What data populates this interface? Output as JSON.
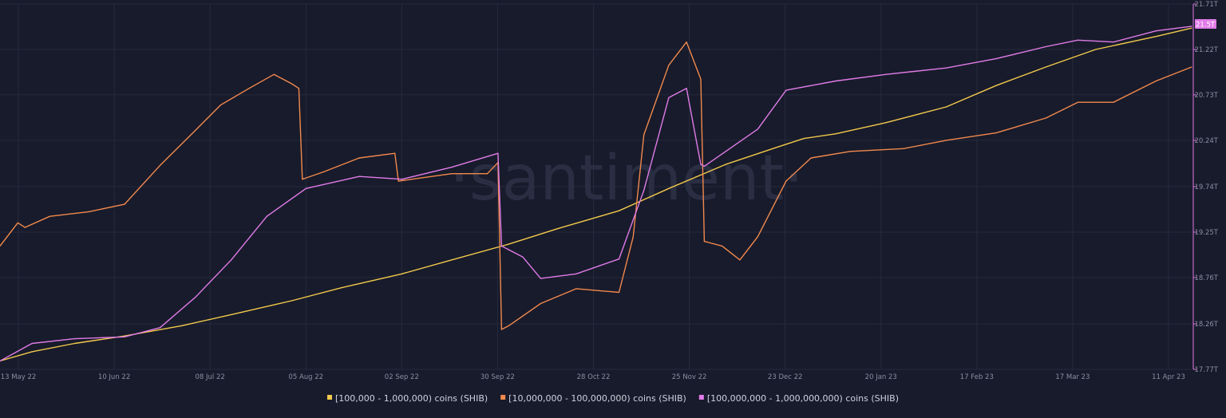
{
  "watermark": "·santiment·",
  "current_value_badge": "21.5T",
  "chart_data": {
    "type": "line",
    "title": "",
    "xlabel": "",
    "ylabel": "",
    "x_ticks": [
      "13 May 22",
      "10 Jun 22",
      "08 Jul 22",
      "05 Aug 22",
      "02 Sep 22",
      "30 Sep 22",
      "28 Oct 22",
      "25 Nov 22",
      "23 Dec 22",
      "20 Jan 23",
      "17 Feb 23",
      "17 Mar 23",
      "11 Apr 23"
    ],
    "x_range": [
      "2022-05-11",
      "2023-04-11"
    ],
    "y_ticks": [
      "21.71T",
      "21.22T",
      "20.73T",
      "20.24T",
      "19.74T",
      "19.25T",
      "18.76T",
      "18.26T",
      "17.77T"
    ],
    "y_tick_values": [
      21.71,
      21.22,
      20.73,
      20.24,
      19.74,
      19.25,
      18.76,
      18.26,
      17.77
    ],
    "ylim": [
      17.77,
      21.71
    ],
    "y_unit": "T",
    "grid": true,
    "legend_position": "bottom",
    "colors": {
      "background": "#181b2b",
      "grid": "#262a3c",
      "axis_text": "#8a8ea3",
      "legend_text": "#cfd2de",
      "badge": "#e07be8"
    },
    "series": [
      {
        "name": "[100,000  - 1,000,000) coins (SHIB)",
        "color": "#f2c94c",
        "x": [
          "2022-05-11",
          "2022-05-20",
          "2022-06-01",
          "2022-06-15",
          "2022-07-01",
          "2022-07-15",
          "2022-08-01",
          "2022-08-15",
          "2022-09-01",
          "2022-09-15",
          "2022-10-01",
          "2022-10-15",
          "2022-11-01",
          "2022-11-15",
          "2022-12-01",
          "2022-12-15",
          "2022-12-23",
          "2023-01-01",
          "2023-01-15",
          "2023-02-01",
          "2023-02-15",
          "2023-03-01",
          "2023-03-15",
          "2023-04-01",
          "2023-04-11"
        ],
        "values": [
          17.86,
          17.96,
          18.05,
          18.13,
          18.24,
          18.36,
          18.51,
          18.65,
          18.8,
          18.95,
          19.12,
          19.29,
          19.48,
          19.72,
          19.98,
          20.16,
          20.26,
          20.31,
          20.43,
          20.6,
          20.83,
          21.03,
          21.22,
          21.36,
          21.45
        ]
      },
      {
        "name": "[10,000,000 - 100,000,000) coins (SHIB)",
        "color": "#f2894e",
        "x": [
          "2022-05-11",
          "2022-05-16",
          "2022-05-18",
          "2022-05-25",
          "2022-06-05",
          "2022-06-15",
          "2022-06-25",
          "2022-07-05",
          "2022-07-12",
          "2022-07-20",
          "2022-07-27",
          "2022-08-01",
          "2022-08-03",
          "2022-08-04",
          "2022-08-10",
          "2022-08-20",
          "2022-08-30",
          "2022-08-31",
          "2022-09-15",
          "2022-09-25",
          "2022-09-28",
          "2022-09-29",
          "2022-10-01",
          "2022-10-10",
          "2022-10-20",
          "2022-11-01",
          "2022-11-05",
          "2022-11-08",
          "2022-11-15",
          "2022-11-20",
          "2022-11-24",
          "2022-11-25",
          "2022-11-30",
          "2022-12-05",
          "2022-12-10",
          "2022-12-18",
          "2022-12-25",
          "2023-01-05",
          "2023-01-20",
          "2023-02-01",
          "2023-02-15",
          "2023-03-01",
          "2023-03-10",
          "2023-03-20",
          "2023-04-01",
          "2023-04-11"
        ],
        "values": [
          19.1,
          19.35,
          19.3,
          19.42,
          19.47,
          19.55,
          19.97,
          20.35,
          20.62,
          20.8,
          20.95,
          20.85,
          20.8,
          19.82,
          19.9,
          20.05,
          20.1,
          19.8,
          19.88,
          19.88,
          20.0,
          18.2,
          18.24,
          18.48,
          18.64,
          18.6,
          19.2,
          20.3,
          21.05,
          21.3,
          20.9,
          19.15,
          19.1,
          18.95,
          19.2,
          19.8,
          20.05,
          20.12,
          20.15,
          20.24,
          20.32,
          20.48,
          20.65,
          20.65,
          20.88,
          21.03
        ]
      },
      {
        "name": "[100,000,000 - 1,000,000,000) coins (SHIB)",
        "color": "#e07be8",
        "x": [
          "2022-05-11",
          "2022-05-20",
          "2022-06-01",
          "2022-06-15",
          "2022-06-25",
          "2022-07-05",
          "2022-07-15",
          "2022-07-25",
          "2022-08-05",
          "2022-08-20",
          "2022-09-01",
          "2022-09-15",
          "2022-09-28",
          "2022-09-29",
          "2022-10-05",
          "2022-10-10",
          "2022-10-20",
          "2022-11-01",
          "2022-11-08",
          "2022-11-15",
          "2022-11-20",
          "2022-11-24",
          "2022-11-25",
          "2022-12-01",
          "2022-12-10",
          "2022-12-18",
          "2023-01-01",
          "2023-01-15",
          "2023-02-01",
          "2023-02-15",
          "2023-03-01",
          "2023-03-10",
          "2023-03-20",
          "2023-04-01",
          "2023-04-11"
        ],
        "values": [
          17.86,
          18.05,
          18.1,
          18.12,
          18.22,
          18.55,
          18.95,
          19.42,
          19.72,
          19.85,
          19.82,
          19.95,
          20.1,
          19.1,
          18.98,
          18.75,
          18.8,
          18.96,
          19.7,
          20.7,
          20.8,
          19.98,
          19.96,
          20.12,
          20.36,
          20.78,
          20.88,
          20.95,
          21.02,
          21.12,
          21.25,
          21.32,
          21.3,
          21.42,
          21.47
        ]
      }
    ]
  }
}
